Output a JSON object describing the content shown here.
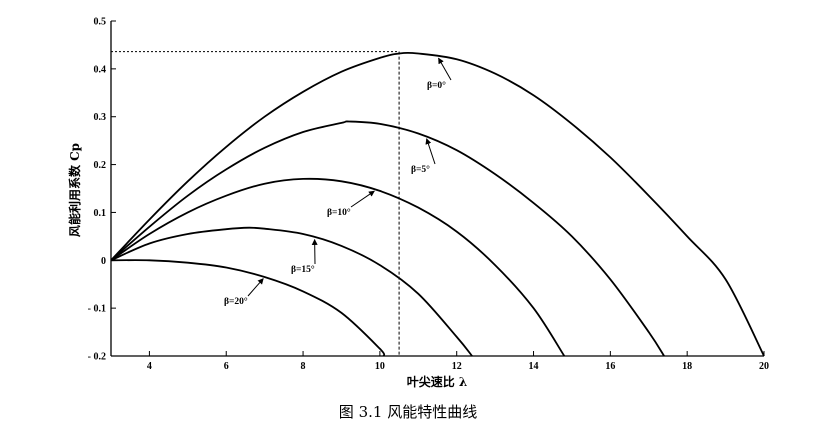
{
  "chart_data": {
    "type": "line",
    "title": "",
    "xlabel": "叶尖速比 λ",
    "ylabel": "风能利用系数 Cp",
    "xlim": [
      3,
      20
    ],
    "ylim": [
      -0.2,
      0.5
    ],
    "x_ticks": [
      4,
      6,
      8,
      10,
      12,
      14,
      16,
      18,
      20
    ],
    "y_ticks": [
      -0.2,
      -0.1,
      0,
      0.1,
      0.2,
      0.3,
      0.4,
      0.5
    ],
    "x_tick_labels": [
      "4",
      "6",
      "8",
      "10",
      "12",
      "14",
      "16",
      "18",
      "20"
    ],
    "y_tick_labels": [
      "- 0.2",
      "- 0.1",
      "0",
      "0.1",
      "0.2",
      "0.3",
      "0.4",
      "0.5"
    ],
    "grid": false,
    "legend": "none",
    "series": [
      {
        "name": "β=0°",
        "x": [
          3,
          4,
          5,
          6,
          7,
          8,
          9,
          10,
          10.5,
          11,
          12,
          13,
          14,
          15,
          16,
          17,
          18,
          19,
          20
        ],
        "y": [
          0,
          0.085,
          0.165,
          0.237,
          0.3,
          0.352,
          0.394,
          0.423,
          0.432,
          0.432,
          0.42,
          0.39,
          0.345,
          0.285,
          0.215,
          0.135,
          0.05,
          -0.04,
          -0.2
        ]
      },
      {
        "name": "β=5°",
        "x": [
          3,
          4,
          5,
          6,
          7,
          8,
          9,
          9.2,
          10,
          11,
          12,
          13,
          14,
          15,
          16,
          17,
          17.4
        ],
        "y": [
          0,
          0.07,
          0.135,
          0.19,
          0.235,
          0.268,
          0.287,
          0.29,
          0.285,
          0.265,
          0.23,
          0.18,
          0.12,
          0.05,
          -0.04,
          -0.15,
          -0.2
        ]
      },
      {
        "name": "β=10°",
        "x": [
          3,
          4,
          5,
          6,
          7,
          8,
          9,
          10,
          11,
          12,
          13,
          14,
          14.8
        ],
        "y": [
          0,
          0.055,
          0.1,
          0.135,
          0.16,
          0.17,
          0.165,
          0.145,
          0.11,
          0.06,
          -0.01,
          -0.1,
          -0.2
        ]
      },
      {
        "name": "β=15°",
        "x": [
          3,
          4,
          5,
          6,
          6.6,
          7,
          8,
          9,
          10,
          11,
          12,
          12.4
        ],
        "y": [
          0,
          0.035,
          0.055,
          0.065,
          0.068,
          0.066,
          0.055,
          0.03,
          -0.01,
          -0.07,
          -0.16,
          -0.2
        ]
      },
      {
        "name": "β=20°",
        "x": [
          3,
          4,
          5,
          6,
          7,
          8,
          9,
          10,
          10.1
        ],
        "y": [
          0,
          0,
          -0.005,
          -0.015,
          -0.035,
          -0.065,
          -0.11,
          -0.185,
          -0.2
        ]
      }
    ],
    "annotations": [
      {
        "text": "β=0°",
        "series": "β=0°"
      },
      {
        "text": "β=5°",
        "series": "β=5°"
      },
      {
        "text": "β=10°",
        "series": "β=10°"
      },
      {
        "text": "β=15°",
        "series": "β=15°"
      },
      {
        "text": "β=20°",
        "series": "β=20°"
      }
    ],
    "reference_lines": {
      "cp_max": 0.436,
      "lambda_opt": 10.5
    }
  },
  "caption": "图 3.1  风能特性曲线"
}
